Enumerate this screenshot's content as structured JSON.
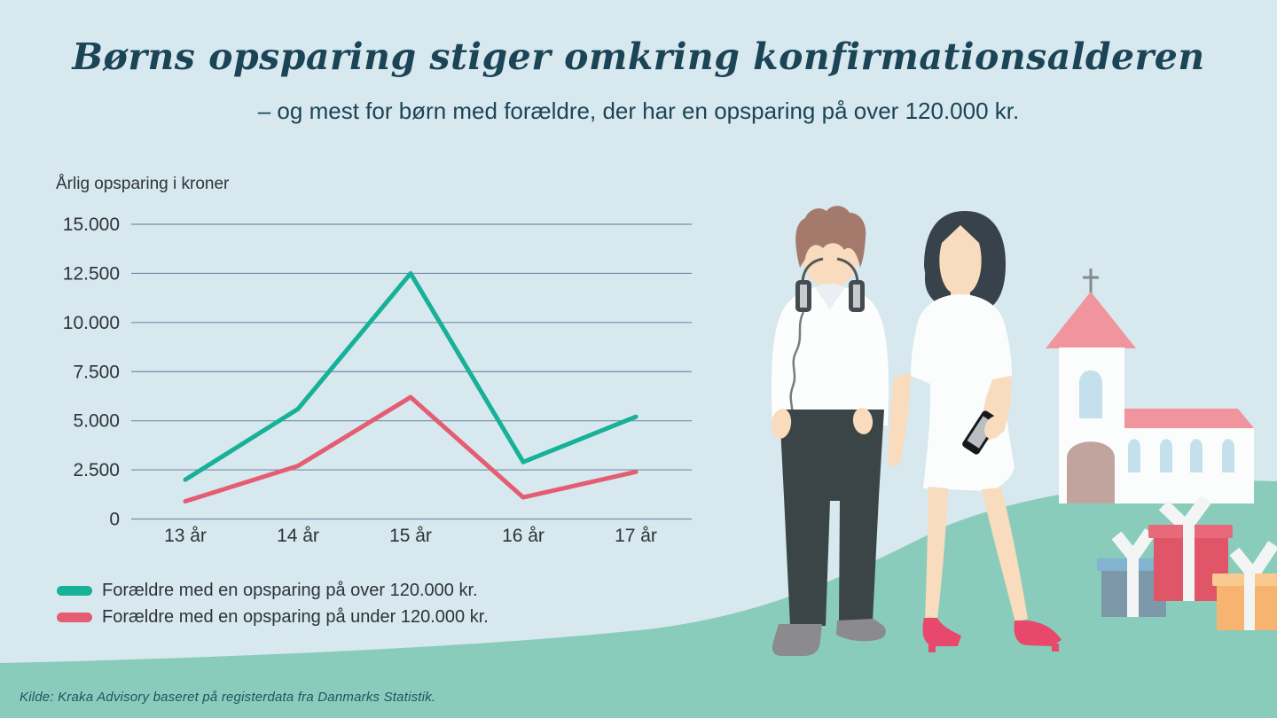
{
  "title": "Børns opsparing stiger omkring konfirmationsalderen",
  "subtitle": "– og mest for børn med forældre, der har en opsparing på over 120.000 kr.",
  "source": "Kilde: Kraka Advisory baseret på registerdata fra Danmarks Statistik.",
  "colors": {
    "background": "#d7e8ef",
    "hill": "#8accbb",
    "title_text": "#1b4456",
    "chart_text": "#2e3338",
    "gridline": "#758ea8",
    "series_over": "#16b197",
    "series_under": "#e45d72",
    "source_text": "#1f5560"
  },
  "chart_data": {
    "type": "line",
    "title": "",
    "ylabel_above": "Årlig opsparing i kroner",
    "xlabel": "",
    "categories": [
      "13 år",
      "14 år",
      "15 år",
      "16 år",
      "17 år"
    ],
    "series": [
      {
        "name": "Forældre med en opsparing på over 120.000 kr.",
        "color": "#16b197",
        "values": [
          2000,
          5600,
          12500,
          2900,
          5200
        ]
      },
      {
        "name": "Forældre med en opsparing på under 120.000 kr.",
        "color": "#e45d72",
        "values": [
          900,
          2700,
          6200,
          1100,
          2400
        ]
      }
    ],
    "ylim": [
      0,
      15000
    ],
    "yticks": [
      0,
      2500,
      5000,
      7500,
      10000,
      12500,
      15000
    ],
    "ytick_labels": [
      "0",
      "2.500",
      "5.000",
      "7.500",
      "10.000",
      "12.500",
      "15.000"
    ],
    "grid": true,
    "legend_position": "below-left"
  },
  "illustration_items": {
    "boy": "confirmation-boy-with-headphones",
    "girl": "confirmation-girl-with-phone",
    "church": "church-with-tower-and-cross",
    "gifts": "three-gift-boxes"
  }
}
